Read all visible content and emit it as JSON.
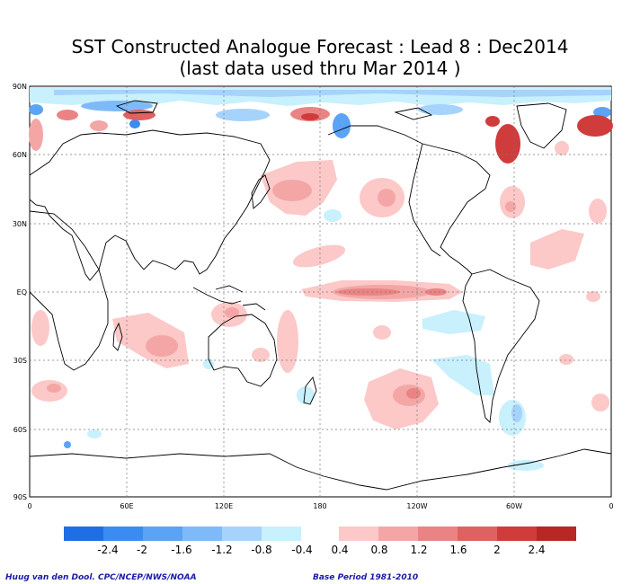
{
  "title_line1": "SST Constructed Analogue Forecast : Lead 8 : Dec2014",
  "title_line2": "(last data used thru Mar 2014 )",
  "lat_labels": [
    "90N",
    "60N",
    "30N",
    "EQ",
    "30S",
    "60S",
    "90S"
  ],
  "lon_labels": [
    "0",
    "60E",
    "120E",
    "180",
    "120W",
    "60W",
    "0"
  ],
  "legend": {
    "negative_colors": [
      "#1e6fe6",
      "#3b8cf0",
      "#5aa3f5",
      "#7fbaf8",
      "#a6d3fb",
      "#c8f0fd"
    ],
    "positive_colors": [
      "#fcc8c8",
      "#f4a6a6",
      "#ea8484",
      "#de6262",
      "#d03c3c",
      "#b82626"
    ],
    "negative_labels": [
      "-2.4",
      "-2",
      "-1.6",
      "-1.2",
      "-0.8",
      "-0.4"
    ],
    "positive_labels": [
      "0.4",
      "0.8",
      "1.2",
      "1.6",
      "2",
      "2.4"
    ]
  },
  "credit_left": "Huug van den Dool. CPC/NCEP/NWS/NOAA",
  "credit_right": "Base Period 1981-2010"
}
